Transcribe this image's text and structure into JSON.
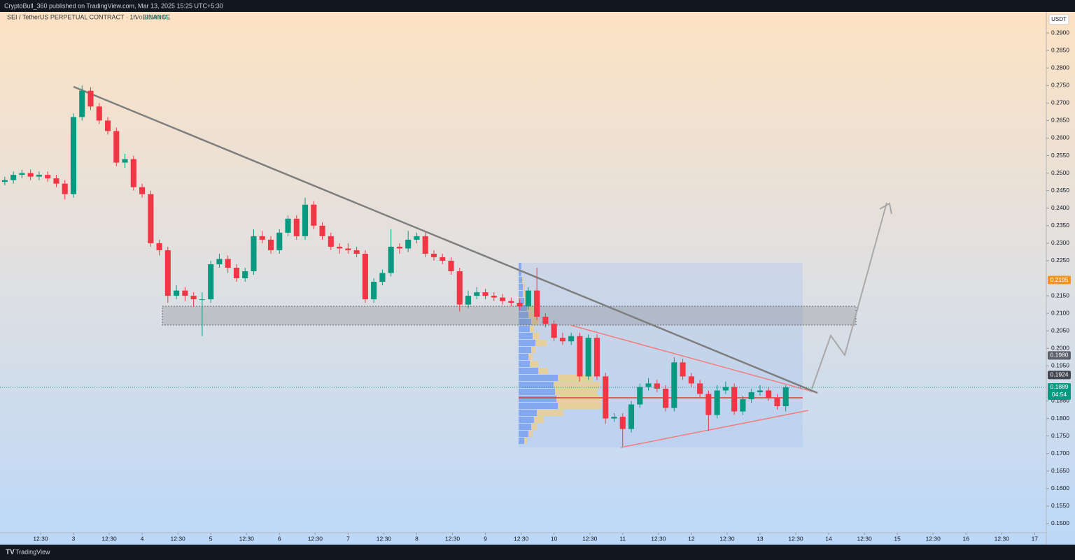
{
  "header": {
    "publisher": "CryptoBull_360 published on TradingView.com, Mar 13, 2025 15:25 UTC+5:30"
  },
  "footer": {
    "brand": "TradingView"
  },
  "chart_data": {
    "type": "candlestick",
    "title": "SEI / TetherUS PERPETUAL CONTRACT · 1h · BINANCE",
    "volume_label": "Vol",
    "volume": {
      "value": 23.99,
      "label": "23.99 M"
    },
    "currency": "USDT",
    "up_color": "#089981",
    "down_color": "#f23645",
    "x": [
      2,
      2.125,
      2.25,
      2.375,
      2.5,
      2.625,
      2.75,
      2.875,
      3,
      3.125,
      3.25,
      3.375,
      3.5,
      3.625,
      3.75,
      3.875,
      4,
      4.125,
      4.25,
      4.375,
      4.5,
      4.625,
      4.75,
      4.875,
      5,
      5.125,
      5.25,
      5.375,
      5.5,
      5.625,
      5.75,
      5.875,
      6,
      6.125,
      6.25,
      6.375,
      6.5,
      6.625,
      6.75,
      6.875,
      7,
      7.125,
      7.25,
      7.375,
      7.5,
      7.625,
      7.75,
      7.875,
      8,
      8.125,
      8.25,
      8.375,
      8.5,
      8.625,
      8.75,
      8.875,
      9,
      9.125,
      9.25,
      9.375,
      9.5,
      9.625,
      9.75,
      9.875,
      10,
      10.125,
      10.25,
      10.375,
      10.5,
      10.625,
      10.75,
      10.875,
      11,
      11.125,
      11.25,
      11.375,
      11.5,
      11.625,
      11.75,
      11.875,
      12,
      12.125,
      12.25,
      12.375,
      12.5,
      12.625,
      12.75,
      12.875,
      13,
      13.125,
      13.25,
      13.375
    ],
    "open": [
      0.2475,
      0.248,
      0.2495,
      0.25,
      0.249,
      0.2495,
      0.2485,
      0.247,
      0.244,
      0.266,
      0.2735,
      0.269,
      0.265,
      0.262,
      0.253,
      0.254,
      0.246,
      0.244,
      0.23,
      0.228,
      0.215,
      0.2165,
      0.215,
      0.214,
      0.214,
      0.224,
      0.2255,
      0.223,
      0.22,
      0.222,
      0.232,
      0.231,
      0.228,
      0.233,
      0.237,
      0.232,
      0.241,
      0.235,
      0.232,
      0.229,
      0.2285,
      0.228,
      0.227,
      0.214,
      0.219,
      0.2215,
      0.229,
      0.2285,
      0.231,
      0.232,
      0.227,
      0.226,
      0.225,
      0.222,
      0.2125,
      0.215,
      0.216,
      0.215,
      0.2145,
      0.2135,
      0.213,
      0.212,
      0.2165,
      0.209,
      0.207,
      0.203,
      0.202,
      0.2035,
      0.192,
      0.203,
      0.192,
      0.18,
      0.1805,
      0.177,
      0.184,
      0.189,
      0.19,
      0.1885,
      0.183,
      0.196,
      0.192,
      0.19,
      0.187,
      0.181,
      0.188,
      0.189,
      0.182,
      0.1855,
      0.1875,
      0.188,
      0.186,
      0.1835
    ],
    "high": [
      0.249,
      0.2505,
      0.251,
      0.251,
      0.2505,
      0.2505,
      0.2495,
      0.248,
      0.267,
      0.275,
      0.2745,
      0.27,
      0.266,
      0.263,
      0.2555,
      0.255,
      0.247,
      0.245,
      0.231,
      0.229,
      0.218,
      0.2175,
      0.216,
      0.216,
      0.225,
      0.227,
      0.2265,
      0.224,
      0.223,
      0.234,
      0.2335,
      0.232,
      0.234,
      0.238,
      0.238,
      0.243,
      0.242,
      0.236,
      0.233,
      0.23,
      0.23,
      0.229,
      0.228,
      0.22,
      0.2225,
      0.234,
      0.23,
      0.2335,
      0.233,
      0.233,
      0.228,
      0.227,
      0.226,
      0.223,
      0.2165,
      0.2175,
      0.217,
      0.216,
      0.2155,
      0.2145,
      0.214,
      0.2175,
      0.223,
      0.21,
      0.208,
      0.2045,
      0.2045,
      0.2045,
      0.204,
      0.204,
      0.193,
      0.1815,
      0.1815,
      0.185,
      0.19,
      0.1915,
      0.191,
      0.1895,
      0.1975,
      0.197,
      0.193,
      0.191,
      0.188,
      0.1895,
      0.1905,
      0.19,
      0.1865,
      0.1885,
      0.1895,
      0.189,
      0.187,
      0.1895
    ],
    "low": [
      0.2465,
      0.247,
      0.2485,
      0.248,
      0.248,
      0.2475,
      0.246,
      0.2425,
      0.243,
      0.265,
      0.268,
      0.264,
      0.261,
      0.252,
      0.2515,
      0.245,
      0.243,
      0.229,
      0.2265,
      0.213,
      0.214,
      0.2135,
      0.212,
      0.2035,
      0.213,
      0.223,
      0.2215,
      0.219,
      0.219,
      0.221,
      0.23,
      0.227,
      0.227,
      0.232,
      0.231,
      0.231,
      0.234,
      0.231,
      0.228,
      0.227,
      0.227,
      0.226,
      0.213,
      0.213,
      0.218,
      0.2205,
      0.227,
      0.2275,
      0.23,
      0.226,
      0.225,
      0.224,
      0.221,
      0.2105,
      0.2115,
      0.214,
      0.214,
      0.2135,
      0.2125,
      0.212,
      0.211,
      0.211,
      0.208,
      0.206,
      0.202,
      0.201,
      0.201,
      0.1905,
      0.191,
      0.191,
      0.1785,
      0.179,
      0.172,
      0.176,
      0.183,
      0.188,
      0.1875,
      0.182,
      0.182,
      0.191,
      0.189,
      0.186,
      0.1765,
      0.18,
      0.187,
      0.181,
      0.181,
      0.1845,
      0.1865,
      0.185,
      0.1825,
      0.182
    ],
    "close": [
      0.248,
      0.2495,
      0.25,
      0.249,
      0.2495,
      0.2485,
      0.247,
      0.244,
      0.266,
      0.2735,
      0.269,
      0.265,
      0.262,
      0.253,
      0.254,
      0.246,
      0.244,
      0.23,
      0.228,
      0.215,
      0.2165,
      0.215,
      0.214,
      0.214,
      0.224,
      0.2255,
      0.223,
      0.22,
      0.222,
      0.232,
      0.231,
      0.228,
      0.233,
      0.237,
      0.232,
      0.241,
      0.235,
      0.232,
      0.229,
      0.2285,
      0.228,
      0.227,
      0.214,
      0.219,
      0.2215,
      0.229,
      0.2285,
      0.231,
      0.232,
      0.227,
      0.226,
      0.225,
      0.222,
      0.2125,
      0.215,
      0.216,
      0.215,
      0.2145,
      0.2135,
      0.213,
      0.212,
      0.2165,
      0.209,
      0.207,
      0.203,
      0.202,
      0.2035,
      0.192,
      0.203,
      0.192,
      0.18,
      0.1805,
      0.177,
      0.184,
      0.189,
      0.19,
      0.1885,
      0.183,
      0.196,
      0.192,
      0.19,
      0.187,
      0.181,
      0.188,
      0.189,
      0.182,
      0.1855,
      0.1875,
      0.188,
      0.186,
      0.1835,
      0.1889
    ],
    "xlim": [
      1.93,
      17.17
    ],
    "xticks": [
      {
        "value": 2.5208,
        "label": "12:30"
      },
      3,
      {
        "value": 3.5208,
        "label": "12:30"
      },
      4,
      {
        "value": 4.5208,
        "label": "12:30"
      },
      5,
      {
        "value": 5.5208,
        "label": "12:30"
      },
      6,
      {
        "value": 6.5208,
        "label": "12:30"
      },
      7,
      {
        "value": 7.5208,
        "label": "12:30"
      },
      8,
      {
        "value": 8.5208,
        "label": "12:30"
      },
      9,
      {
        "value": 9.5208,
        "label": "12:30"
      },
      10,
      {
        "value": 10.5208,
        "label": "12:30"
      },
      11,
      {
        "value": 11.5208,
        "label": "12:30"
      },
      12,
      {
        "value": 12.5208,
        "label": "12:30"
      },
      13,
      {
        "value": 13.5208,
        "label": "12:30"
      },
      14,
      {
        "value": 14.5208,
        "label": "12:30"
      },
      15,
      {
        "value": 15.5208,
        "label": "12:30"
      },
      16,
      {
        "value": 16.5208,
        "label": "12:30"
      },
      17
    ],
    "ylim": [
      0.1474,
      0.296
    ],
    "yticks": [
      {
        "value": 0.15,
        "label": "0.1500"
      },
      {
        "value": 0.155,
        "label": "0.1550"
      },
      {
        "value": 0.16,
        "label": "0.1600"
      },
      {
        "value": 0.165,
        "label": "0.1650"
      },
      {
        "value": 0.17,
        "label": "0.1700"
      },
      {
        "value": 0.175,
        "label": "0.1750"
      },
      {
        "value": 0.18,
        "label": "0.1800"
      },
      {
        "value": 0.185,
        "label": "0.1850"
      },
      {
        "value": 0.195,
        "label": "0.1950"
      },
      {
        "value": 0.2,
        "label": "0.2000"
      },
      {
        "value": 0.205,
        "label": "0.2050"
      },
      {
        "value": 0.21,
        "label": "0.2100"
      },
      {
        "value": 0.215,
        "label": "0.2150"
      },
      {
        "value": 0.225,
        "label": "0.2250"
      },
      {
        "value": 0.23,
        "label": "0.2300"
      },
      {
        "value": 0.235,
        "label": "0.2350"
      },
      {
        "value": 0.24,
        "label": "0.2400"
      },
      {
        "value": 0.245,
        "label": "0.2450"
      },
      {
        "value": 0.25,
        "label": "0.2500"
      },
      {
        "value": 0.255,
        "label": "0.2550"
      },
      {
        "value": 0.26,
        "label": "0.2600"
      },
      {
        "value": 0.265,
        "label": "0.2650"
      },
      {
        "value": 0.27,
        "label": "0.2700"
      },
      {
        "value": 0.275,
        "label": "0.2750"
      },
      {
        "value": 0.28,
        "label": "0.2800"
      },
      {
        "value": 0.285,
        "label": "0.2850"
      },
      {
        "value": 0.29,
        "label": "0.2900"
      }
    ],
    "price_marks": [
      {
        "value": 0.2195,
        "label": "0.2195",
        "color": "#f7931a"
      },
      {
        "value": 0.198,
        "label": "0.1980",
        "color": "#5d606b"
      },
      {
        "value": 0.1924,
        "label": "0.1924",
        "color": "#434651"
      },
      {
        "value": 0.1889,
        "label": "0.1889",
        "color": "#089981"
      }
    ],
    "countdown": "04:54"
  }
}
